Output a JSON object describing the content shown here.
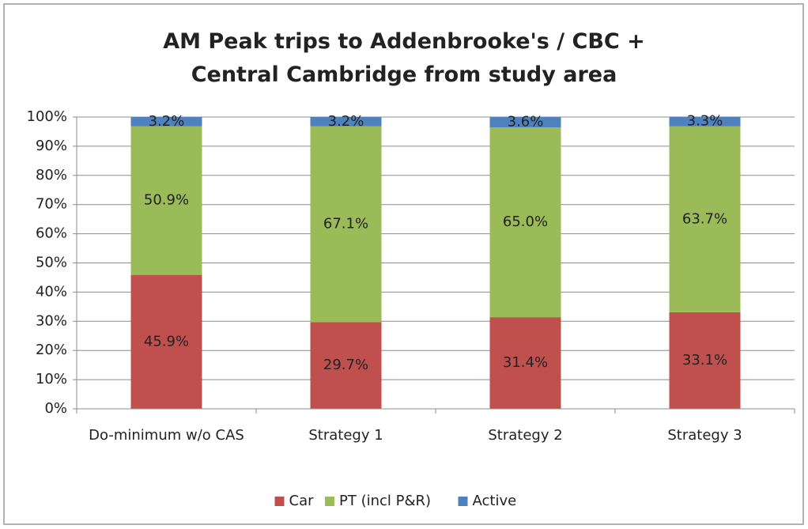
{
  "chart_data": {
    "type": "stacked_bar",
    "title": "AM Peak trips to Addenbrooke's / CBC + Central Cambridge from study area",
    "categories": [
      "Do-minimum w/o CAS",
      "Strategy 1",
      "Strategy 2",
      "Strategy 3"
    ],
    "series": [
      {
        "name": "Car",
        "color": "#c0504d",
        "values": [
          45.9,
          29.7,
          31.4,
          33.1
        ],
        "value_labels": [
          "45.9%",
          "29.7%",
          "31.4%",
          "33.1%"
        ]
      },
      {
        "name": "PT (incl P&R)",
        "color": "#9bbb59",
        "values": [
          50.9,
          67.1,
          65.0,
          63.7
        ],
        "value_labels": [
          "50.9%",
          "67.1%",
          "65.0%",
          "63.7%"
        ]
      },
      {
        "name": "Active",
        "color": "#4f81bd",
        "values": [
          3.2,
          3.2,
          3.6,
          3.3
        ],
        "value_labels": [
          "3.2%",
          "3.2%",
          "3.6%",
          "3.3%"
        ]
      }
    ],
    "ylim": [
      0,
      100
    ],
    "yticks": [
      {
        "value": 0,
        "label": "0%"
      },
      {
        "value": 10,
        "label": "10%"
      },
      {
        "value": 20,
        "label": "20%"
      },
      {
        "value": 30,
        "label": "30%"
      },
      {
        "value": 40,
        "label": "40%"
      },
      {
        "value": 50,
        "label": "50%"
      },
      {
        "value": 60,
        "label": "60%"
      },
      {
        "value": 70,
        "label": "70%"
      },
      {
        "value": 80,
        "label": "80%"
      },
      {
        "value": 90,
        "label": "90%"
      },
      {
        "value": 100,
        "label": "100%"
      }
    ],
    "grid": true,
    "legend": "bottom"
  }
}
